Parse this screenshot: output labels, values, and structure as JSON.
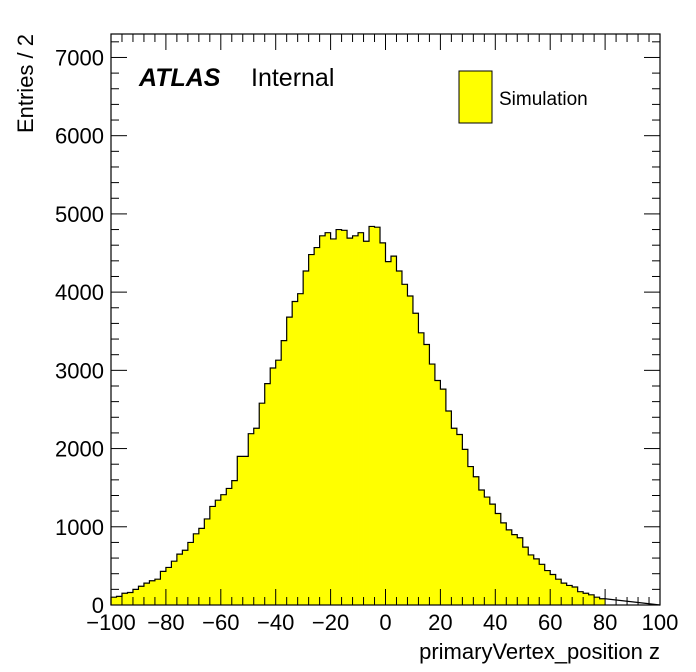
{
  "chart_data": {
    "type": "bar",
    "subtype": "histogram",
    "xlabel": "primaryVertex_position z",
    "ylabel": "Entries / 2",
    "xlim": [
      -100,
      100
    ],
    "ylim": [
      0,
      7300
    ],
    "bin_width": 2,
    "x_ticks": [
      -100,
      -80,
      -60,
      -40,
      -20,
      0,
      20,
      40,
      60,
      80,
      100
    ],
    "x_tick_labels": [
      "−100",
      "−80",
      "−60",
      "−40",
      "−20",
      "0",
      "20",
      "40",
      "60",
      "80",
      "100"
    ],
    "y_ticks": [
      0,
      1000,
      2000,
      3000,
      4000,
      5000,
      6000,
      7000
    ],
    "y_tick_labels": [
      "0",
      "1000",
      "2000",
      "3000",
      "4000",
      "5000",
      "6000",
      "7000"
    ],
    "grid": false,
    "fill_color": "#ffff00",
    "line_color": "#000000",
    "annotation": {
      "bold": "ATLAS",
      "plain": "Internal"
    },
    "legend": {
      "position": "top-right",
      "entries": [
        "Simulation"
      ]
    },
    "series": [
      {
        "name": "Simulation",
        "values": [
          100,
          110,
          150,
          160,
          200,
          240,
          280,
          310,
          330,
          430,
          480,
          560,
          650,
          700,
          800,
          910,
          980,
          1100,
          1260,
          1340,
          1410,
          1490,
          1590,
          1900,
          1900,
          2190,
          2260,
          2580,
          2830,
          3030,
          3130,
          3380,
          3680,
          3880,
          3980,
          4270,
          4480,
          4570,
          4720,
          4760,
          4680,
          4800,
          4790,
          4690,
          4720,
          4760,
          4650,
          4840,
          4830,
          4630,
          4390,
          4460,
          4270,
          4100,
          3950,
          3730,
          3480,
          3330,
          3080,
          2870,
          2760,
          2480,
          2260,
          2180,
          1990,
          1770,
          1640,
          1470,
          1380,
          1290,
          1170,
          1050,
          960,
          900,
          860,
          740,
          640,
          590,
          520,
          440,
          390,
          330,
          280,
          250,
          230,
          170,
          150,
          130,
          100,
          80
        ]
      }
    ]
  }
}
